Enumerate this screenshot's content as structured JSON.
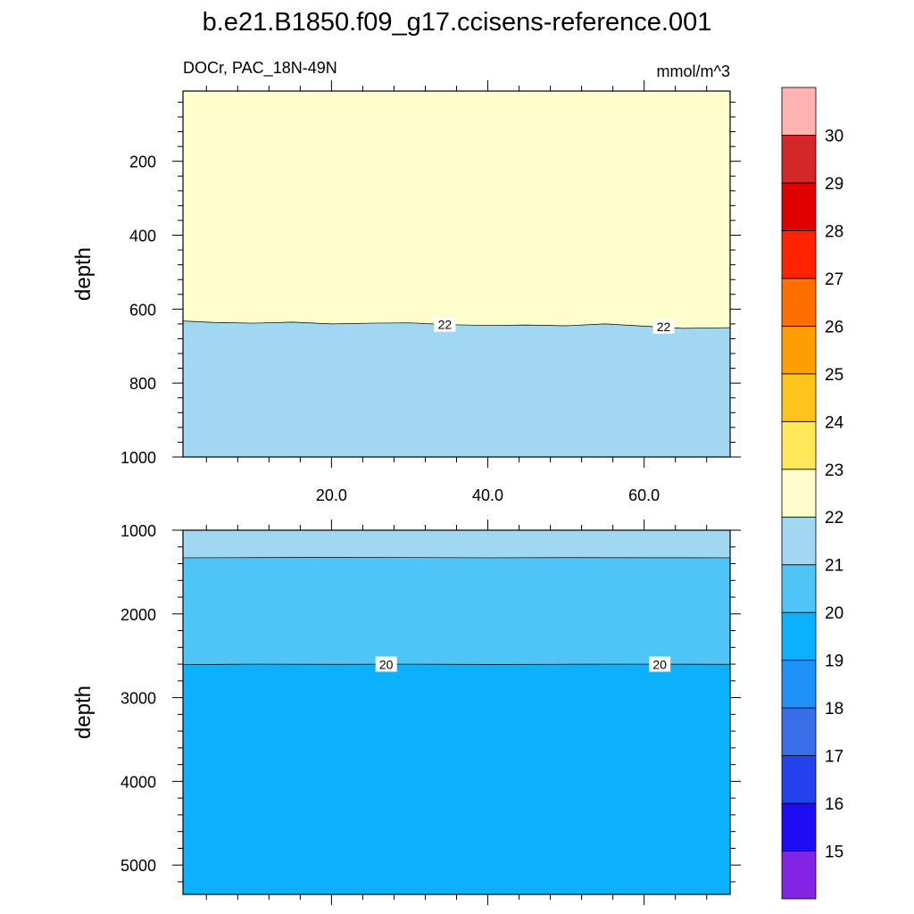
{
  "chart_data": {
    "type": "contour",
    "title": "b.e21.B1850.f09_g17.ccisens-reference.001",
    "left_label": "DOCr, PAC_18N-49N",
    "units": "mmol/m^3",
    "x": {
      "range": [
        1,
        71
      ],
      "ticks": [
        20.0,
        40.0,
        60.0
      ],
      "tick_labels": [
        "20.0",
        "40.0",
        "60.0"
      ]
    },
    "colorbar": {
      "levels": [
        15,
        16,
        17,
        18,
        19,
        20,
        21,
        22,
        23,
        24,
        25,
        26,
        27,
        28,
        29,
        30
      ],
      "labels": [
        "15",
        "16",
        "17",
        "18",
        "19",
        "20",
        "21",
        "22",
        "23",
        "24",
        "25",
        "26",
        "27",
        "28",
        "29",
        "30"
      ],
      "colors": [
        "#8323e6",
        "#1e0cf5",
        "#2341ed",
        "#3a6ee8",
        "#1f91f9",
        "#0bb1fd",
        "#4ec4f7",
        "#a1d7f0",
        "#fefecc",
        "#fee85a",
        "#fec41b",
        "#fe9e00",
        "#fe6f00",
        "#fe2300",
        "#e00000",
        "#d42727",
        "#feb3b3"
      ]
    },
    "panels": [
      {
        "name": "upper",
        "ylabel": "depth",
        "y": {
          "range": [
            10,
            1000
          ],
          "inverted": true,
          "ticks": [
            200,
            400,
            600,
            800,
            1000
          ],
          "tick_labels": [
            "200",
            "400",
            "600",
            "800",
            "1000"
          ]
        },
        "contours": [
          {
            "level": 22,
            "x": [
              1,
              5,
              10,
              15,
              20,
              25,
              30,
              35,
              40,
              45,
              50,
              55,
              60,
              65,
              71
            ],
            "depth": [
              632,
              636,
              638,
              635,
              640,
              638,
              637,
              642,
              644,
              643,
              645,
              640,
              646,
              652,
              650
            ]
          }
        ],
        "labels": [
          {
            "text": "22",
            "x": 34.5,
            "depth": 642
          },
          {
            "text": "22",
            "x": 62.5,
            "depth": 647
          }
        ]
      },
      {
        "name": "lower",
        "ylabel": "depth",
        "y": {
          "range": [
            1000,
            5350
          ],
          "inverted": true,
          "ticks": [
            1000,
            2000,
            3000,
            4000,
            5000
          ],
          "tick_labels": [
            "1000",
            "2000",
            "3000",
            "4000",
            "5000"
          ]
        },
        "contours": [
          {
            "level": 21,
            "x": [
              1,
              10,
              20,
              30,
              40,
              50,
              60,
              71
            ],
            "depth": [
              1330,
              1328,
              1325,
              1327,
              1330,
              1328,
              1329,
              1330
            ]
          },
          {
            "level": 20,
            "x": [
              1,
              10,
              20,
              30,
              40,
              50,
              60,
              71
            ],
            "depth": [
              2605,
              2600,
              2602,
              2600,
              2603,
              2601,
              2600,
              2602
            ]
          }
        ],
        "labels": [
          {
            "text": "20",
            "x": 27,
            "depth": 2605
          },
          {
            "text": "20",
            "x": 62,
            "depth": 2605
          }
        ]
      }
    ]
  }
}
